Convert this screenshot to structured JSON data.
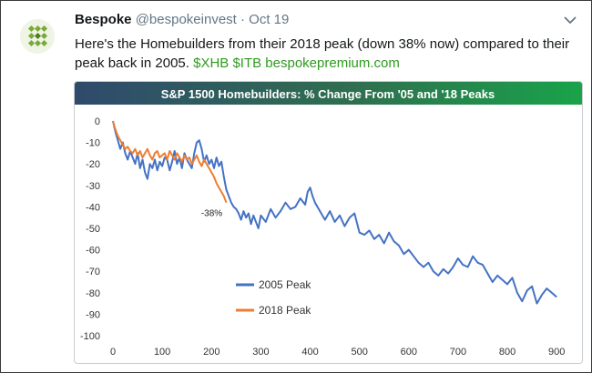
{
  "tweet": {
    "author_name": "Bespoke",
    "handle": "@bespokeinvest",
    "separator": "·",
    "date": "Oct 19",
    "text_main": "Here's the Homebuilders from their 2018 peak (down 38% now) compared to their peak back in 2005.",
    "text_links": "$XHB $ITB bespokepremium.com",
    "colors": {
      "link": "#2f9a1f",
      "text": "#14171a",
      "muted": "#657786"
    }
  },
  "chart_data": {
    "type": "line",
    "title": "S&P 1500 Homebuilders: % Change From '05 and '18 Peaks",
    "xlabel": "",
    "ylabel": "",
    "xlim": [
      0,
      920
    ],
    "ylim": [
      -100,
      0
    ],
    "x_ticks": [
      0,
      100,
      200,
      300,
      400,
      500,
      600,
      700,
      800,
      900
    ],
    "y_ticks": [
      0,
      -10,
      -20,
      -30,
      -40,
      -50,
      -60,
      -70,
      -80,
      -90,
      -100
    ],
    "grid": false,
    "legend_position": "bottom-left",
    "series": [
      {
        "name": "2005 Peak",
        "color": "#4472c4",
        "x": [
          0,
          5,
          10,
          15,
          20,
          25,
          30,
          35,
          40,
          45,
          50,
          55,
          60,
          65,
          70,
          75,
          80,
          85,
          90,
          95,
          100,
          105,
          110,
          115,
          120,
          125,
          130,
          135,
          140,
          145,
          150,
          155,
          160,
          165,
          170,
          175,
          180,
          185,
          190,
          195,
          200,
          205,
          210,
          215,
          220,
          225,
          230,
          235,
          240,
          245,
          250,
          255,
          260,
          265,
          270,
          275,
          280,
          285,
          290,
          295,
          300,
          310,
          320,
          330,
          340,
          350,
          360,
          370,
          380,
          390,
          395,
          400,
          405,
          410,
          420,
          430,
          440,
          450,
          460,
          470,
          480,
          490,
          500,
          510,
          520,
          530,
          540,
          550,
          560,
          570,
          580,
          590,
          600,
          610,
          620,
          630,
          640,
          650,
          660,
          670,
          680,
          690,
          700,
          710,
          720,
          730,
          740,
          750,
          760,
          770,
          780,
          790,
          800,
          810,
          820,
          830,
          840,
          850,
          860,
          870,
          880,
          890,
          900
        ],
        "values": [
          0,
          -5,
          -9,
          -13,
          -10,
          -15,
          -18,
          -14,
          -17,
          -20,
          -15,
          -22,
          -18,
          -24,
          -27,
          -20,
          -22,
          -18,
          -23,
          -19,
          -21,
          -17,
          -18,
          -23,
          -19,
          -14,
          -20,
          -17,
          -22,
          -15,
          -18,
          -20,
          -22,
          -15,
          -10,
          -9,
          -13,
          -19,
          -16,
          -20,
          -18,
          -22,
          -17,
          -21,
          -19,
          -26,
          -32,
          -35,
          -38,
          -40,
          -41,
          -43,
          -46,
          -42,
          -45,
          -43,
          -48,
          -44,
          -47,
          -50,
          -44,
          -47,
          -41,
          -45,
          -42,
          -38,
          -41,
          -40,
          -36,
          -39,
          -33,
          -31,
          -35,
          -38,
          -42,
          -46,
          -42,
          -47,
          -44,
          -49,
          -45,
          -43,
          -52,
          -53,
          -51,
          -55,
          -53,
          -57,
          -52,
          -56,
          -58,
          -62,
          -60,
          -63,
          -66,
          -68,
          -66,
          -70,
          -72,
          -69,
          -71,
          -68,
          -64,
          -67,
          -68,
          -63,
          -66,
          -67,
          -71,
          -75,
          -72,
          -74,
          -76,
          -73,
          -80,
          -84,
          -79,
          -77,
          -85,
          -81,
          -78,
          -80,
          -82
        ]
      },
      {
        "name": "2018 Peak",
        "color": "#ed7d31",
        "x": [
          0,
          5,
          10,
          15,
          20,
          25,
          30,
          35,
          40,
          45,
          50,
          55,
          60,
          65,
          70,
          75,
          80,
          85,
          90,
          95,
          100,
          105,
          110,
          115,
          120,
          125,
          130,
          135,
          140,
          145,
          150,
          155,
          160,
          165,
          170,
          175,
          180,
          185,
          190,
          195,
          200,
          205,
          210,
          215,
          220,
          225,
          230
        ],
        "values": [
          0,
          -4,
          -7,
          -9,
          -11,
          -13,
          -12,
          -14,
          -15,
          -13,
          -16,
          -14,
          -17,
          -15,
          -13,
          -16,
          -18,
          -15,
          -14,
          -17,
          -16,
          -15,
          -18,
          -14,
          -16,
          -18,
          -15,
          -17,
          -19,
          -16,
          -18,
          -17,
          -20,
          -18,
          -16,
          -19,
          -21,
          -18,
          -20,
          -22,
          -24,
          -26,
          -29,
          -31,
          -33,
          -35,
          -38
        ]
      }
    ],
    "annotations": [
      {
        "text": "-38%",
        "x": 230,
        "y": -38
      }
    ]
  }
}
